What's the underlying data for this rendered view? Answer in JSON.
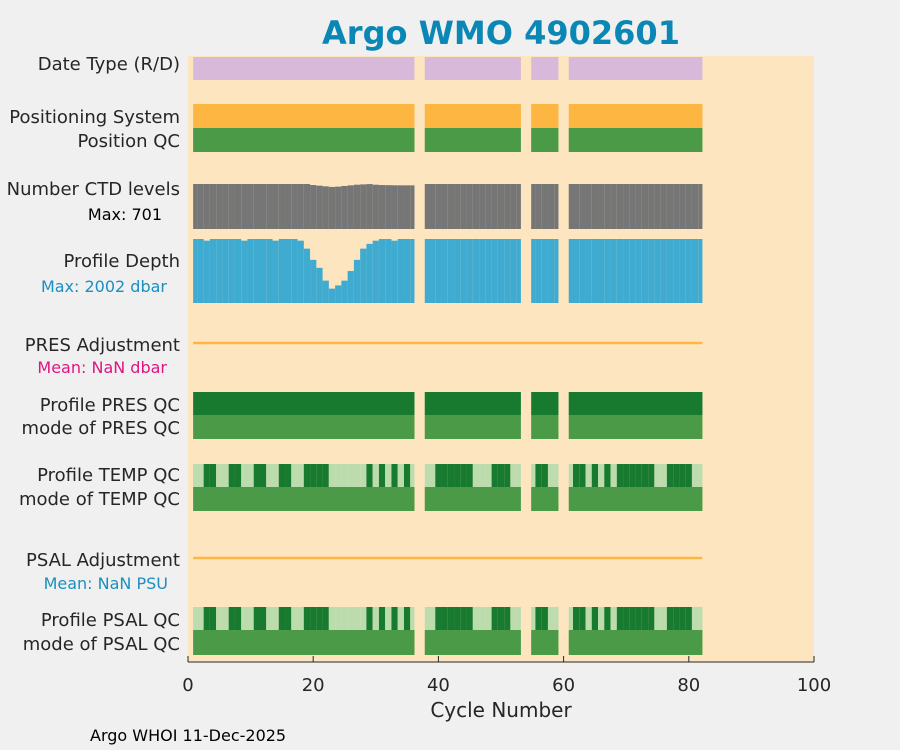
{
  "chart_data": {
    "type": "bar",
    "title": "Argo WMO 4902601",
    "xlabel": "Cycle Number",
    "xlim": [
      0,
      100
    ],
    "xticks": [
      0,
      20,
      40,
      60,
      80,
      100
    ],
    "grid": false,
    "cycles_present": [
      [
        1,
        36
      ],
      [
        38,
        53
      ],
      [
        55,
        59
      ],
      [
        61,
        82
      ]
    ],
    "rows": [
      {
        "key": "date_type",
        "label": "Date Type (R/D)",
        "color": "#d9b9d9"
      },
      {
        "key": "positioning",
        "label": "Positioning System",
        "color": "#fdb642"
      },
      {
        "key": "position_qc",
        "label": "Position QC",
        "color": "#4a9a48"
      },
      {
        "key": "ctd_levels",
        "label": "Number CTD levels",
        "sublabel": "Max: 701",
        "sublabel_color": "#000000",
        "color": "#767676",
        "max": 701
      },
      {
        "key": "profile_depth",
        "label": "Profile Depth",
        "sublabel": "Max: 2002 dbar",
        "sublabel_color": "#1a8fc0",
        "color": "#40abd1",
        "max": 2002
      },
      {
        "key": "pres_adj",
        "label": "PRES Adjustment",
        "sublabel": "Mean:  NaN dbar",
        "sublabel_color": "#e0157f",
        "color": "#fdb642"
      },
      {
        "key": "profile_pres_qc",
        "label": "Profile PRES QC",
        "color": "#177a2f"
      },
      {
        "key": "mode_pres_qc",
        "label": "mode of PRES QC",
        "color": "#4a9a48"
      },
      {
        "key": "profile_temp_qc",
        "label": "Profile TEMP QC",
        "color": "#177a2f",
        "alt_color": "#bcdcae"
      },
      {
        "key": "mode_temp_qc",
        "label": "mode of TEMP QC",
        "color": "#4a9a48"
      },
      {
        "key": "psal_adj",
        "label": "PSAL Adjustment",
        "sublabel": "Mean:  NaN PSU",
        "sublabel_color": "#1a8fc0",
        "color": "#fdb642"
      },
      {
        "key": "profile_psal_qc",
        "label": "Profile PSAL QC",
        "color": "#177a2f",
        "alt_color": "#bcdcae"
      },
      {
        "key": "mode_psal_qc",
        "label": "mode of PSAL QC",
        "color": "#4a9a48"
      }
    ],
    "ctd_levels_by_cycle": [
      701,
      701,
      701,
      701,
      701,
      701,
      701,
      701,
      701,
      701,
      701,
      701,
      701,
      701,
      701,
      701,
      701,
      701,
      701,
      685,
      675,
      665,
      655,
      660,
      670,
      680,
      690,
      695,
      700,
      690,
      685,
      683,
      681,
      680,
      680,
      680
    ],
    "profile_depth_by_cycle": [
      2002,
      2002,
      1950,
      2002,
      2002,
      2002,
      2002,
      2002,
      1950,
      2002,
      2002,
      2002,
      2002,
      1950,
      2002,
      2002,
      2002,
      1950,
      1700,
      1350,
      1100,
      700,
      450,
      550,
      700,
      1000,
      1350,
      1700,
      1850,
      1950,
      2002,
      2002,
      1950,
      2002,
      2002,
      2002
    ],
    "profile_qc_pattern": {
      "light_cycles": [
        1,
        2,
        5,
        6,
        9,
        10,
        13,
        14,
        17,
        18,
        23,
        24,
        25,
        26,
        27,
        28,
        30,
        32,
        34,
        36,
        38,
        39,
        46,
        47,
        48,
        52,
        53,
        55,
        58,
        59,
        61,
        64,
        66,
        68,
        75,
        76,
        81,
        82
      ]
    }
  },
  "footer": "Argo WHOI 11-Dec-2025"
}
